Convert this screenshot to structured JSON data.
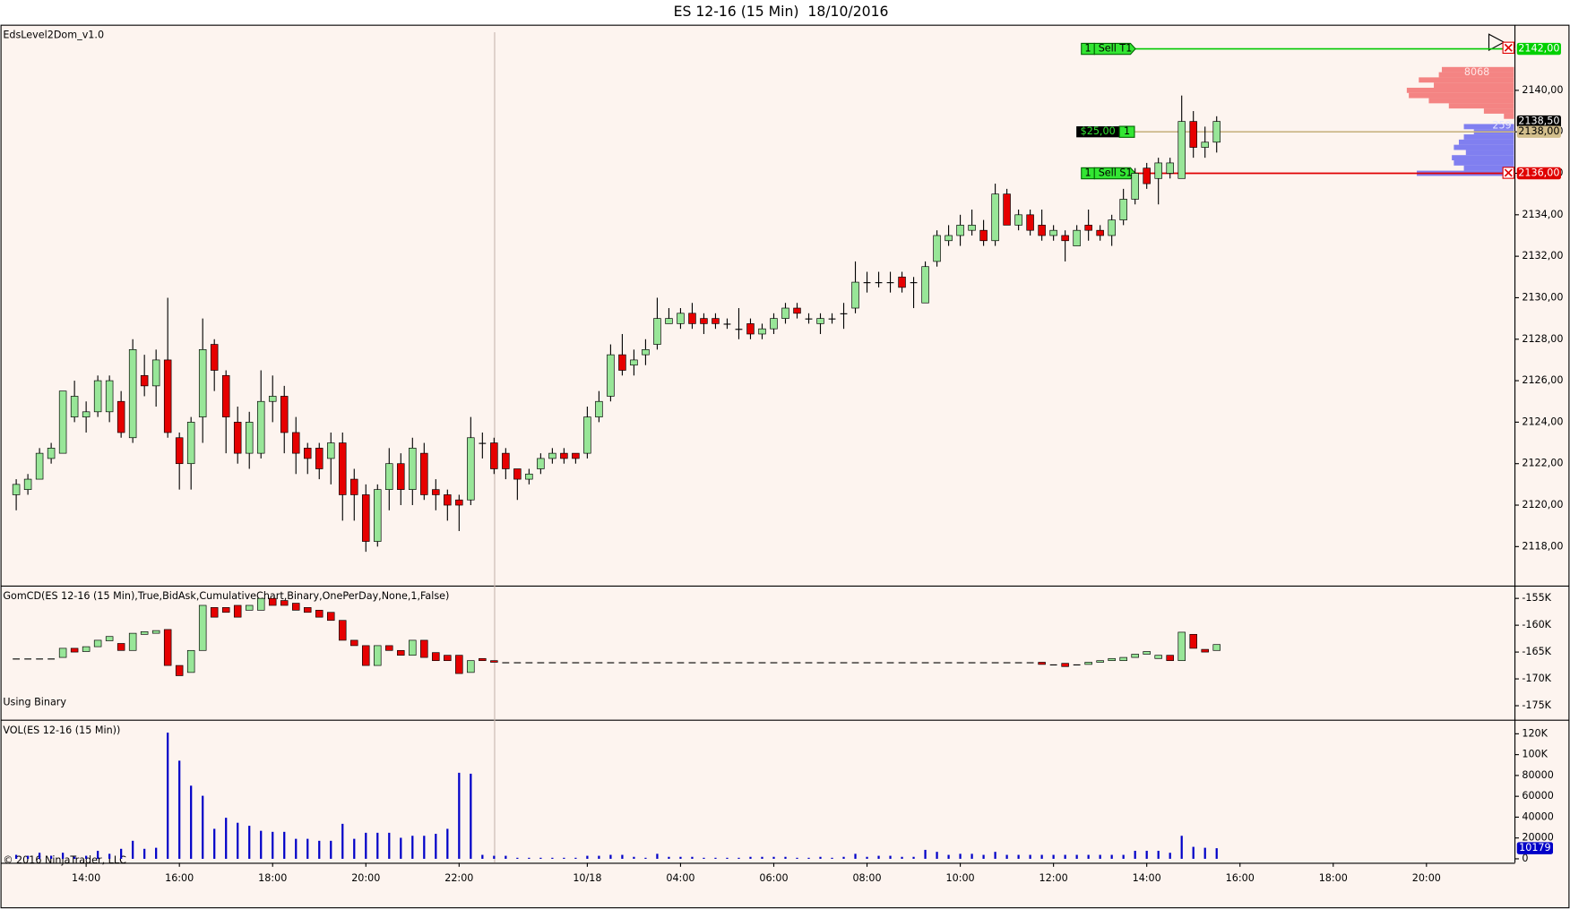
{
  "title": "ES 12-16 (15 Min)  18/10/2016",
  "footer": "© 2016 NinjaTrader, LLC",
  "chart_data": [
    {
      "type": "candlestick",
      "title": "EdsLevel2Dom_v1.0",
      "colors": {
        "up": "#98e698",
        "down": "#e60000"
      },
      "ylim": [
        2116.12,
        2143.14
      ],
      "yticks": [
        {
          "value": 2118,
          "label": "2118,00"
        },
        {
          "value": 2120,
          "label": "2120,00"
        },
        {
          "value": 2122,
          "label": "2122,00"
        },
        {
          "value": 2124,
          "label": "2124,00"
        },
        {
          "value": 2126,
          "label": "2126,00"
        },
        {
          "value": 2128,
          "label": "2128,00"
        },
        {
          "value": 2130,
          "label": "2130,00"
        },
        {
          "value": 2132,
          "label": "2132,00"
        },
        {
          "value": 2134,
          "label": "2134,00"
        },
        {
          "value": 2136,
          "label": "2136,00"
        },
        {
          "value": 2138,
          "label": "2138,00"
        },
        {
          "value": 2140,
          "label": "2140,00"
        }
      ],
      "open": [
        2120.5,
        2120.75,
        2121.25,
        2122.25,
        2122.5,
        2124.25,
        2124.25,
        2124.5,
        2124.5,
        2125,
        2123.25,
        2126.25,
        2125.75,
        2127,
        2123.25,
        2122,
        2124.25,
        2127.75,
        2126.25,
        2124,
        2122.5,
        2122.5,
        2125,
        2125.25,
        2123.5,
        2122.75,
        2122.75,
        2122.25,
        2123,
        2121.25,
        2120.5,
        2118.25,
        2120.75,
        2122,
        2120.75,
        2122.5,
        2120.75,
        2120.5,
        2120.25,
        2120.25,
        2123,
        2123,
        2122.5,
        2121.75,
        2121.25,
        2121.75,
        2122.25,
        2122.5,
        2122.5,
        2122.5,
        2124.25,
        2125.25,
        2127.25,
        2126.75,
        2127.25,
        2127.75,
        2128.75,
        2128.75,
        2129.25,
        2129,
        2129,
        2128.75,
        2128.5,
        2128.75,
        2128.25,
        2128.5,
        2129,
        2129.5,
        2129,
        2128.75,
        2129,
        2129.25,
        2129.5,
        2130.75,
        2130.75,
        2130.75,
        2131,
        2130.75,
        2129.75,
        2131.75,
        2132.75,
        2133,
        2133.25,
        2133.25,
        2132.75,
        2135,
        2133.5,
        2134,
        2133.5,
        2133,
        2133,
        2132.5,
        2133.5,
        2133.25,
        2133,
        2133.75,
        2134.75,
        2136.25,
        2135.75,
        2136,
        2135.75,
        2138.5,
        2137.25,
        2137.5,
        null,
        null,
        null,
        null,
        null,
        null,
        null,
        null,
        null,
        null,
        null,
        null,
        null,
        null,
        null,
        null,
        null,
        null
      ],
      "high": [
        2121.25,
        2121.5,
        2122.75,
        2123,
        2125.5,
        2126,
        2125,
        2126.25,
        2126.25,
        2125.5,
        2128,
        2127.25,
        2127.5,
        2130,
        2123.5,
        2124.25,
        2129,
        2128,
        2126.5,
        2124.75,
        2124.5,
        2126.5,
        2126.25,
        2125.75,
        2124.25,
        2123,
        2123,
        2123.5,
        2123.5,
        2121.75,
        2121,
        2121,
        2122.75,
        2122.5,
        2123.25,
        2123,
        2121.25,
        2120.75,
        2120.5,
        2124.25,
        2123.5,
        2123.25,
        2122.75,
        2121.75,
        2121.75,
        2122.5,
        2122.75,
        2122.75,
        2122.5,
        2124.75,
        2125.5,
        2127.75,
        2128.25,
        2127.5,
        2128,
        2130,
        2129.5,
        2129.5,
        2129.75,
        2129.25,
        2129.25,
        2129,
        2129.5,
        2129,
        2128.75,
        2129.25,
        2129.75,
        2129.75,
        2129.25,
        2129.25,
        2129.25,
        2129.75,
        2131.75,
        2131.25,
        2131.25,
        2131.25,
        2131.25,
        2131,
        2131.75,
        2133.25,
        2133.5,
        2134,
        2134.25,
        2133.75,
        2135.5,
        2135.25,
        2134.25,
        2134.25,
        2134.25,
        2133.5,
        2133.25,
        2133.5,
        2134.25,
        2133.5,
        2134,
        2135.25,
        2136.25,
        2136.5,
        2136.75,
        2136.75,
        2139.75,
        2139,
        2138.25,
        2138.75,
        null,
        null,
        null,
        null,
        null,
        null,
        null,
        null,
        null,
        null,
        null,
        null,
        null,
        null,
        null,
        null,
        null,
        null
      ],
      "low": [
        2119.75,
        2120.5,
        2121.25,
        2122,
        2122.5,
        2124,
        2123.5,
        2124.25,
        2124,
        2123.25,
        2123,
        2125.25,
        2124.75,
        2123.25,
        2120.75,
        2120.75,
        2123,
        2125.5,
        2122.5,
        2122,
        2121.75,
        2122.25,
        2124,
        2122.5,
        2121.5,
        2121.5,
        2121.25,
        2121,
        2119.25,
        2119.25,
        2117.75,
        2118,
        2119.75,
        2120,
        2120,
        2120.25,
        2119.75,
        2119.25,
        2118.75,
        2120,
        2122.25,
        2121.5,
        2121.25,
        2120.25,
        2121,
        2121.5,
        2122,
        2122,
        2122,
        2122.25,
        2124,
        2125,
        2126.25,
        2126.25,
        2126.75,
        2127.5,
        2128.75,
        2128.5,
        2128.5,
        2128.25,
        2128.5,
        2128.5,
        2128,
        2128,
        2128,
        2128.25,
        2128.75,
        2129,
        2128.75,
        2128.25,
        2128.75,
        2128.5,
        2129.25,
        2130.25,
        2130.5,
        2130.25,
        2130.25,
        2129.5,
        2129.75,
        2131.5,
        2132.5,
        2132.5,
        2133,
        2132.5,
        2132.5,
        2133.5,
        2133.25,
        2133,
        2132.75,
        2132.75,
        2131.75,
        2132.5,
        2132.75,
        2132.75,
        2132.5,
        2133.5,
        2134.5,
        2135.25,
        2134.5,
        2135.75,
        2135.75,
        2136.75,
        2136.75,
        2137,
        null,
        null,
        null,
        null,
        null,
        null,
        null,
        null,
        null,
        null,
        null,
        null,
        null,
        null,
        null,
        null,
        null,
        null
      ],
      "close": [
        2121,
        2121.25,
        2122.5,
        2122.75,
        2125.5,
        2125.25,
        2124.5,
        2126,
        2126,
        2123.5,
        2127.5,
        2125.75,
        2127,
        2123.5,
        2122,
        2124,
        2127.5,
        2126.5,
        2124.25,
        2122.5,
        2124,
        2125,
        2125.25,
        2123.5,
        2122.5,
        2122.25,
        2121.75,
        2123,
        2120.5,
        2120.5,
        2118.25,
        2120.75,
        2122,
        2120.75,
        2122.75,
        2120.5,
        2120.5,
        2120,
        2120,
        2123.25,
        2123,
        2121.75,
        2121.75,
        2121.25,
        2121.5,
        2122.25,
        2122.5,
        2122.25,
        2122.25,
        2124.25,
        2125,
        2127.25,
        2126.5,
        2127,
        2127.5,
        2129,
        2129,
        2129.25,
        2128.75,
        2128.75,
        2128.75,
        2128.75,
        2128.5,
        2128.25,
        2128.5,
        2129,
        2129.5,
        2129.25,
        2129,
        2129,
        2129,
        2129.25,
        2130.75,
        2130.75,
        2130.75,
        2130.75,
        2130.5,
        2130.75,
        2131.5,
        2133,
        2133,
        2133.5,
        2133.5,
        2132.75,
        2135,
        2133.5,
        2134,
        2133.25,
        2133,
        2133.25,
        2132.75,
        2133.25,
        2133.25,
        2133,
        2133.75,
        2134.75,
        2136,
        2135.5,
        2136.5,
        2136.5,
        2138.5,
        2137.25,
        2137.5,
        2138.5,
        null,
        null,
        null,
        null,
        null,
        null,
        null,
        null,
        null,
        null,
        null,
        null,
        null,
        null,
        null,
        null,
        null,
        null
      ],
      "tags": [
        {
          "value": 2142,
          "label": "2142,00",
          "color": "#00d000"
        },
        {
          "value": 2138.5,
          "label": "2138,50",
          "color": "#000000"
        },
        {
          "value": 2138,
          "label": "2138,00",
          "color": "#d2be8c"
        },
        {
          "value": 2136,
          "label": "2136,00",
          "color": "#e00000"
        }
      ],
      "orders": [
        {
          "quantity": 1,
          "label": "Sell T1",
          "price": 2142,
          "color": "#00c800"
        },
        {
          "quantity": 1,
          "label": "Sell S1",
          "price": 2136,
          "color": "#e00000"
        }
      ],
      "position": {
        "pnl": "$25,00",
        "quantity": 1,
        "price": 2138,
        "color": "#c8b482"
      },
      "dom": {
        "ask_prices": [
          2141,
          2140.75,
          2140.5,
          2140.25,
          2140,
          2139.75,
          2139.5,
          2139.25,
          2139,
          2138.75
        ],
        "ask_sizes": [
          720,
          750,
          950,
          800,
          1070,
          1050,
          850,
          650,
          300,
          100
        ],
        "ask_color": "#f27070",
        "ask_total": 8068,
        "bid_prices": [
          2138.25,
          2138,
          2137.75,
          2137.5,
          2137.25,
          2137,
          2136.75,
          2136.5,
          2136.25,
          2136
        ],
        "bid_sizes": [
          500,
          400,
          500,
          550,
          600,
          480,
          620,
          600,
          500,
          970
        ],
        "bid_color": "#6a6af0",
        "bid_total": 259
      }
    },
    {
      "type": "candlestick",
      "title": "GomCD(ES 12-16 (15 Min),True,BidAsk,CumulativeChart,Binary,OnePerDay,None,1,False)",
      "annotation": "Using Binary",
      "colors": {
        "up": "#98e698",
        "down": "#e60000"
      },
      "ylim": [
        -177600,
        -152800
      ],
      "yticks": [
        {
          "value": -155000,
          "label": "-155K"
        },
        {
          "value": -160000,
          "label": "-160K"
        },
        {
          "value": -165000,
          "label": "-165K"
        },
        {
          "value": -170000,
          "label": "-170K"
        },
        {
          "value": -175000,
          "label": "-175K"
        }
      ],
      "open": [
        -166200,
        -166200,
        -166200,
        -166200,
        -166000,
        -164300,
        -164900,
        -164000,
        -162900,
        -163400,
        -164700,
        -161700,
        -161500,
        -160800,
        -167500,
        -168800,
        -164700,
        -156700,
        -156700,
        -156300,
        -157200,
        -157200,
        -155000,
        -155400,
        -155900,
        -156700,
        -157200,
        -157600,
        -159100,
        -162800,
        -163800,
        -167500,
        -163800,
        -164700,
        -165600,
        -162800,
        -165100,
        -165600,
        -165600,
        -168800,
        -166200,
        -166600,
        -166900,
        -166900,
        -166900,
        -166900,
        -166900,
        -166900,
        -166900,
        -166900,
        -166900,
        -166900,
        -166900,
        -166900,
        -166900,
        -166900,
        -166900,
        -166900,
        -166900,
        -166900,
        -166900,
        -166900,
        -166900,
        -166900,
        -166900,
        -166900,
        -166900,
        -166900,
        -166900,
        -166900,
        -166900,
        -166900,
        -166900,
        -166900,
        -166900,
        -166900,
        -166900,
        -166900,
        -166900,
        -166900,
        -166900,
        -166900,
        -166900,
        -166900,
        -166900,
        -166900,
        -166900,
        -166900,
        -166900,
        -167300,
        -167100,
        -167300,
        -167300,
        -166900,
        -166600,
        -166600,
        -166000,
        -165400,
        -166200,
        -165600,
        -166600,
        -161700,
        -164500,
        -164700,
        null,
        null,
        null,
        null,
        null,
        null,
        null,
        null,
        null,
        null,
        null,
        null,
        null,
        null,
        null,
        null,
        null,
        null
      ],
      "close": [
        -166200,
        -166200,
        -166200,
        -166200,
        -164300,
        -165000,
        -164000,
        -162800,
        -162100,
        -164700,
        -161500,
        -161200,
        -161000,
        -167500,
        -169400,
        -164700,
        -156300,
        -158500,
        -157600,
        -158500,
        -156300,
        -155000,
        -156300,
        -156300,
        -157200,
        -157600,
        -158500,
        -159100,
        -162800,
        -163800,
        -167500,
        -163800,
        -164700,
        -165600,
        -162800,
        -166000,
        -166600,
        -166600,
        -169000,
        -166600,
        -166600,
        -166900,
        -166900,
        -166900,
        -166900,
        -166900,
        -166900,
        -166900,
        -166900,
        -166900,
        -166900,
        -166900,
        -166900,
        -166900,
        -166900,
        -166900,
        -166900,
        -166900,
        -166900,
        -166900,
        -166900,
        -166900,
        -166900,
        -166900,
        -166900,
        -166900,
        -166900,
        -166900,
        -166900,
        -166900,
        -166900,
        -166900,
        -166900,
        -166900,
        -166900,
        -166900,
        -166900,
        -166900,
        -166900,
        -166900,
        -166900,
        -166900,
        -166900,
        -166900,
        -166900,
        -166900,
        -166900,
        -166900,
        -167300,
        -167300,
        -167700,
        -167300,
        -166900,
        -166600,
        -166200,
        -166000,
        -165400,
        -164900,
        -165600,
        -166600,
        -161300,
        -164300,
        -165000,
        -163600,
        null,
        null,
        null,
        null,
        null,
        null,
        null,
        null,
        null,
        null,
        null,
        null,
        null,
        null,
        null,
        null,
        null,
        null
      ]
    },
    {
      "type": "bar",
      "title": "VOL(ES 12-16 (15 Min))",
      "color": "#0000c8",
      "last_value_tag": true,
      "ylim": [
        -3800,
        132600
      ],
      "yticks": [
        0,
        20000,
        40000,
        60000,
        80000,
        {
          "value": 100000,
          "label": "100K"
        },
        {
          "value": 120000,
          "label": "120K"
        }
      ],
      "categories": [
        null,
        null,
        null,
        null,
        null,
        null,
        "14:00",
        null,
        null,
        null,
        null,
        null,
        null,
        null,
        "16:00",
        null,
        null,
        null,
        null,
        null,
        null,
        null,
        "18:00",
        null,
        null,
        null,
        null,
        null,
        null,
        null,
        "20:00",
        null,
        null,
        null,
        null,
        null,
        null,
        null,
        "22:00",
        null,
        null,
        null,
        null,
        null,
        null,
        null,
        null,
        null,
        null,
        "10/18",
        null,
        null,
        null,
        null,
        null,
        null,
        null,
        "04:00",
        null,
        null,
        null,
        null,
        null,
        null,
        null,
        "06:00",
        null,
        null,
        null,
        null,
        null,
        null,
        null,
        "08:00",
        null,
        null,
        null,
        null,
        null,
        null,
        null,
        "10:00",
        null,
        null,
        null,
        null,
        null,
        null,
        null,
        "12:00",
        null,
        null,
        null,
        null,
        null,
        null,
        null,
        "14:00",
        null,
        null,
        null,
        null,
        null,
        null,
        null,
        "16:00",
        null,
        null,
        null,
        null,
        null,
        null,
        null,
        "18:00",
        null,
        null,
        null,
        null,
        null,
        null,
        null,
        "20:00"
      ],
      "values": [
        3800,
        2900,
        5800,
        2900,
        5800,
        1900,
        2900,
        7700,
        4800,
        9600,
        17300,
        9600,
        10600,
        121100,
        94200,
        70200,
        60500,
        28800,
        39400,
        34600,
        31700,
        26900,
        25900,
        25900,
        19200,
        19200,
        17300,
        17300,
        33600,
        19200,
        25000,
        25000,
        25000,
        20200,
        22100,
        22100,
        24000,
        28800,
        82600,
        81700,
        3800,
        2900,
        2900,
        1000,
        1000,
        1000,
        1000,
        1000,
        1000,
        2900,
        2900,
        3800,
        3800,
        1900,
        1000,
        4800,
        1900,
        1900,
        1900,
        1000,
        1000,
        1000,
        1000,
        1900,
        1900,
        1900,
        1900,
        1000,
        1000,
        1900,
        1000,
        1900,
        4800,
        1900,
        2900,
        2900,
        1900,
        1900,
        8600,
        6700,
        3800,
        4800,
        4800,
        3800,
        6700,
        3800,
        3800,
        3800,
        3800,
        3800,
        3800,
        3800,
        3800,
        3800,
        3800,
        3800,
        7700,
        7700,
        7700,
        5800,
        22100,
        11500,
        10600,
        10179,
        null,
        null,
        null,
        null,
        null,
        null,
        null,
        null,
        null,
        null,
        null,
        null,
        null,
        null,
        null,
        null,
        null,
        null
      ]
    }
  ]
}
